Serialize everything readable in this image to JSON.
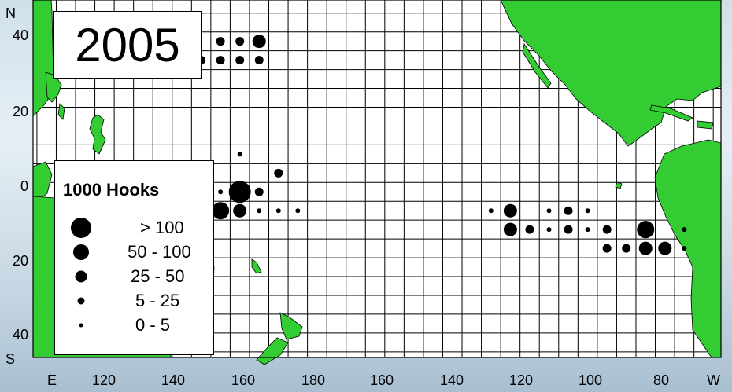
{
  "year": "2005",
  "axes": {
    "north": "N",
    "south": "S",
    "east": "E",
    "west": "W",
    "y_ticks": [
      "40",
      "20",
      "0",
      "20",
      "40"
    ],
    "x_ticks": [
      "120",
      "140",
      "160",
      "180",
      "160",
      "140",
      "120",
      "100",
      "80"
    ]
  },
  "legend": {
    "title": "1000 Hooks",
    "items": [
      {
        "label": "> 100"
      },
      {
        "label": "50 - 100"
      },
      {
        "label": "25 - 50"
      },
      {
        "label": "5 - 25"
      },
      {
        "label": "0 - 5"
      }
    ]
  },
  "colors": {
    "land": "#33cc33",
    "ocean": "#ffffff",
    "grid": "#000000",
    "dots": "#000000"
  },
  "effort_points": [
    {
      "lon": 167.5,
      "lat": 37.5,
      "size_class": "25 - 50"
    },
    {
      "lon": 162.5,
      "lat": 37.5,
      "size_class": "5 - 25"
    },
    {
      "lon": 157.5,
      "lat": 37.5,
      "size_class": "5 - 25"
    },
    {
      "lon": 167.5,
      "lat": 32.5,
      "size_class": "5 - 25"
    },
    {
      "lon": 162.5,
      "lat": 32.5,
      "size_class": "5 - 25"
    },
    {
      "lon": 157.5,
      "lat": 32.5,
      "size_class": "5 - 25"
    },
    {
      "lon": 152.5,
      "lat": 32.5,
      "size_class": "5 - 25"
    },
    {
      "lon": 147.5,
      "lat": 32.5,
      "size_class": "0 - 5"
    },
    {
      "lon": 162.5,
      "lat": 7.5,
      "size_class": "0 - 5"
    },
    {
      "lon": 172.5,
      "lat": 2.5,
      "size_class": "5 - 25"
    },
    {
      "lon": 167.5,
      "lat": -2.5,
      "size_class": "5 - 25"
    },
    {
      "lon": 162.5,
      "lat": -2.5,
      "size_class": "> 100"
    },
    {
      "lon": 157.5,
      "lat": -2.5,
      "size_class": "0 - 5"
    },
    {
      "lon": 177.5,
      "lat": -7.5,
      "size_class": "0 - 5"
    },
    {
      "lon": 172.5,
      "lat": -7.5,
      "size_class": "0 - 5"
    },
    {
      "lon": 167.5,
      "lat": -7.5,
      "size_class": "0 - 5"
    },
    {
      "lon": 162.5,
      "lat": -7.5,
      "size_class": "25 - 50"
    },
    {
      "lon": 157.5,
      "lat": -7.5,
      "size_class": "50 - 100"
    },
    {
      "lon": -132.5,
      "lat": -7.5,
      "size_class": "0 - 5"
    },
    {
      "lon": -127.5,
      "lat": -7.5,
      "size_class": "25 - 50"
    },
    {
      "lon": -117.5,
      "lat": -7.5,
      "size_class": "0 - 5"
    },
    {
      "lon": -112.5,
      "lat": -7.5,
      "size_class": "5 - 25"
    },
    {
      "lon": -107.5,
      "lat": -7.5,
      "size_class": "0 - 5"
    },
    {
      "lon": -127.5,
      "lat": -12.5,
      "size_class": "25 - 50"
    },
    {
      "lon": -122.5,
      "lat": -12.5,
      "size_class": "5 - 25"
    },
    {
      "lon": -117.5,
      "lat": -12.5,
      "size_class": "0 - 5"
    },
    {
      "lon": -112.5,
      "lat": -12.5,
      "size_class": "5 - 25"
    },
    {
      "lon": -107.5,
      "lat": -12.5,
      "size_class": "0 - 5"
    },
    {
      "lon": -102.5,
      "lat": -12.5,
      "size_class": "5 - 25"
    },
    {
      "lon": -92.5,
      "lat": -12.5,
      "size_class": "50 - 100"
    },
    {
      "lon": -82.5,
      "lat": -12.5,
      "size_class": "0 - 5"
    },
    {
      "lon": -102.5,
      "lat": -17.5,
      "size_class": "5 - 25"
    },
    {
      "lon": -97.5,
      "lat": -17.5,
      "size_class": "5 - 25"
    },
    {
      "lon": -92.5,
      "lat": -17.5,
      "size_class": "25 - 50"
    },
    {
      "lon": -87.5,
      "lat": -17.5,
      "size_class": "25 - 50"
    },
    {
      "lon": -82.5,
      "lat": -17.5,
      "size_class": "0 - 5"
    }
  ]
}
